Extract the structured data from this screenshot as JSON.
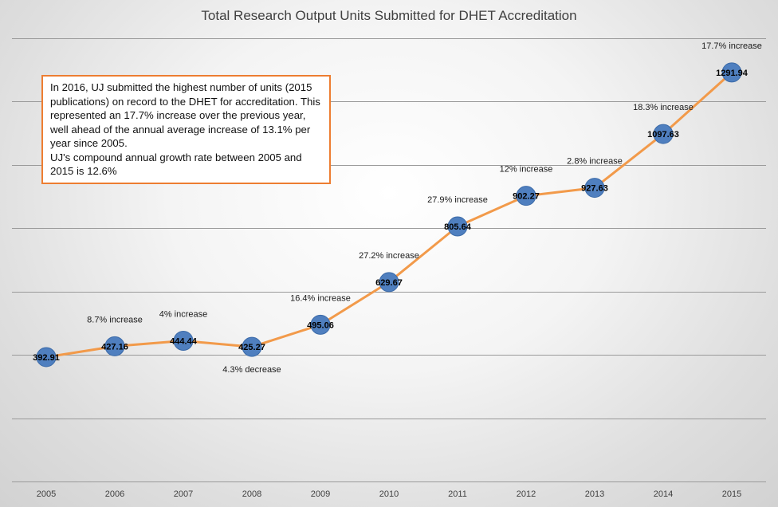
{
  "colors": {
    "line": "#f29a4a",
    "marker": "#4f7fbf",
    "marker_stroke": "#3b6aa8",
    "grid": "#9a9a9a",
    "annotation_border": "#ed7d31"
  },
  "annotation": {
    "paragraph1": "In 2016, UJ submitted the highest number of units (2015 publications) on record to the DHET for accreditation. This represented an 17.7% increase over the previous year, well ahead of the annual average increase of 13.1% per year since 2005.",
    "paragraph2": "UJ's compound annual growth rate between 2005 and 2015  is 12.6%"
  },
  "chart_data": {
    "type": "line",
    "title": "Total Research Output Units Submitted for DHET Accreditation",
    "xlabel": "",
    "ylabel": "",
    "categories": [
      "2005",
      "2006",
      "2007",
      "2008",
      "2009",
      "2010",
      "2011",
      "2012",
      "2013",
      "2014",
      "2015"
    ],
    "values": [
      392.91,
      427.16,
      444.44,
      425.27,
      495.06,
      629.67,
      805.64,
      902.27,
      927.63,
      1097.63,
      1291.94
    ],
    "data_labels": [
      "392.91",
      "427.16",
      "444.44",
      "425.27",
      "495.06",
      "629.67",
      "805.64",
      "902.27",
      "927.63",
      "1097.63",
      "1291.94"
    ],
    "change_labels": [
      "",
      "8.7% increase",
      "4% increase",
      "4.3% decrease",
      "16.4% increase",
      "27.2% increase",
      "27.9% increase",
      "12% increase",
      "2.8% increase",
      "18.3% increase",
      "17.7% increase"
    ],
    "ylim": [
      0,
      1400
    ],
    "y_gridline_step": 200,
    "grid": true,
    "y_tick_labels_visible": false,
    "legend": "none"
  }
}
